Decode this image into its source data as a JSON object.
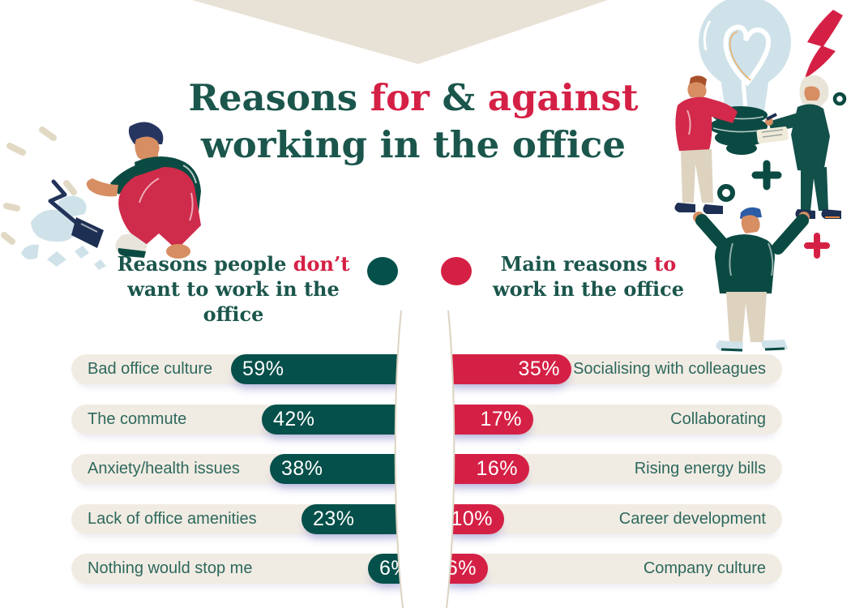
{
  "title": {
    "seg1": "Reasons ",
    "seg2": "for",
    "seg3": " & ",
    "seg4": "against",
    "line2": "working in the office"
  },
  "legend": {
    "left": {
      "seg1": "Reasons people ",
      "seg2": "don’t",
      "line2": "want to work in the office"
    },
    "right": {
      "seg1": "Main reasons ",
      "seg2": "to",
      "line2": "work in the office"
    }
  },
  "colors": {
    "teal": "#05504a",
    "red": "#d52045",
    "pill_background": "#f1ece3",
    "banner_beige": "#e8e1d5",
    "title_teal": "#1b564c",
    "label_teal": "#2d685e",
    "illustration_light_blue": "#cfe2ea",
    "skin": "#d78e63",
    "beige_clothing": "#ddd3bf"
  },
  "chart_data": {
    "type": "bar",
    "orientation": "horizontal-mirrored",
    "legend_position": "top-center",
    "grid": false,
    "series": [
      {
        "name": "Reasons people don’t want to work in the office",
        "side": "left",
        "color": "#05504a",
        "items": [
          {
            "label": "Bad office culture",
            "value": 59,
            "display": "59%"
          },
          {
            "label": "The commute",
            "value": 42,
            "display": "42%"
          },
          {
            "label": "Anxiety/health issues",
            "value": 38,
            "display": "38%"
          },
          {
            "label": "Lack of office amenities",
            "value": 23,
            "display": "23%"
          },
          {
            "label": "Nothing would stop me",
            "value": 6,
            "display": "6%"
          }
        ]
      },
      {
        "name": "Main reasons to work in the office",
        "side": "right",
        "color": "#d52045",
        "items": [
          {
            "label": "Socialising with colleagues",
            "value": 35,
            "display": "35%"
          },
          {
            "label": "Collaborating",
            "value": 17,
            "display": "17%"
          },
          {
            "label": "Rising energy bills",
            "value": 16,
            "display": "16%"
          },
          {
            "label": "Career development",
            "value": 10,
            "display": "10%"
          },
          {
            "label": "Company culture",
            "value": 6,
            "display": "6%"
          }
        ]
      }
    ],
    "title": "Reasons for & against working in the office",
    "xlim": [
      0,
      60
    ],
    "value_unit": "%"
  },
  "illustrations": {
    "left": "person-crouching-over-broken-lightbulb",
    "right": "team-holding-giant-lightbulb"
  }
}
